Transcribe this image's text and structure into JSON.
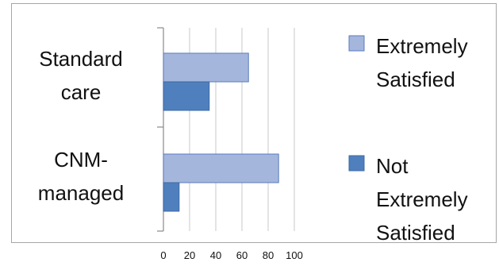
{
  "chart_data": {
    "type": "bar",
    "orientation": "horizontal",
    "categories": [
      [
        "Standard",
        "care"
      ],
      [
        "CNM-",
        "managed"
      ]
    ],
    "series": [
      {
        "name": [
          "Extremely",
          "Satisfied"
        ],
        "values": [
          65,
          88
        ],
        "color": "#a5b6dc",
        "stroke": "#5b7bbf"
      },
      {
        "name": [
          "Not",
          "Extremely",
          "Satisfied"
        ],
        "values": [
          35,
          12
        ],
        "color": "#4f7fbd",
        "stroke": "#3c6aa6"
      }
    ],
    "xlim": [
      0,
      100
    ],
    "xticks": [
      0,
      20,
      40,
      60,
      80,
      100
    ],
    "legend_position": "right",
    "grid": true
  }
}
